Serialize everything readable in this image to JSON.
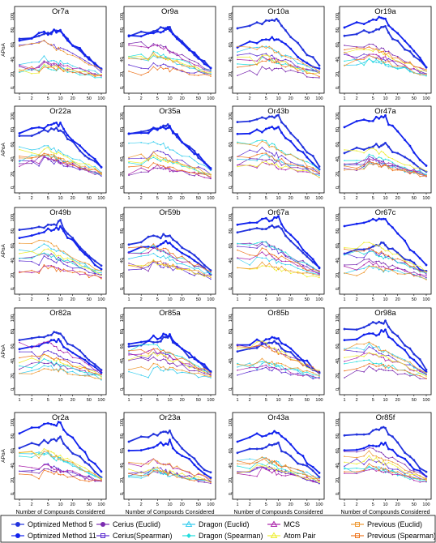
{
  "chart_data": [
    {
      "title": "Or7a",
      "type": "line"
    },
    {
      "title": "Or9a",
      "type": "line"
    },
    {
      "title": "Or10a",
      "type": "line"
    },
    {
      "title": "Or19a",
      "type": "line"
    },
    {
      "title": "Or22a",
      "type": "line"
    },
    {
      "title": "Or35a",
      "type": "line"
    },
    {
      "title": "Or43b",
      "type": "line"
    },
    {
      "title": "Or47a",
      "type": "line"
    },
    {
      "title": "Or49b",
      "type": "line"
    },
    {
      "title": "Or59b",
      "type": "line"
    },
    {
      "title": "Or67a",
      "type": "line"
    },
    {
      "title": "Or67c",
      "type": "line"
    },
    {
      "title": "Or82a",
      "type": "line"
    },
    {
      "title": "Or85a",
      "type": "line"
    },
    {
      "title": "Or85b",
      "type": "line"
    },
    {
      "title": "Or98a",
      "type": "line"
    },
    {
      "title": "Or2a",
      "type": "line"
    },
    {
      "title": "Or23a",
      "type": "line"
    },
    {
      "title": "Or43a",
      "type": "line"
    },
    {
      "title": "Or85f",
      "type": "line"
    }
  ],
  "shared": {
    "ylabel": "APoA",
    "xlabel": "Number of Compounds Considered",
    "x_ticks": [
      "1",
      "2",
      "5",
      "10",
      "20",
      "50",
      "100"
    ],
    "y_ticks": [
      "0",
      "20",
      "40",
      "60",
      "80",
      "100"
    ],
    "ylim": [
      0,
      100
    ],
    "x_scale": "log",
    "x_range": [
      1,
      100
    ]
  },
  "series_styles": [
    {
      "name": "Optimized Method 5",
      "color": "#2233dd"
    },
    {
      "name": "Optimized Method 11",
      "color": "#1122ee"
    },
    {
      "name": "Cerius (Euclid)",
      "color": "#7a2ab0"
    },
    {
      "name": "Cerius(Spearman)",
      "color": "#5a2ad0"
    },
    {
      "name": "Dragon (Euclid)",
      "color": "#33ccee"
    },
    {
      "name": "Dragon (Spearman)",
      "color": "#22dddd"
    },
    {
      "name": "MCS",
      "color": "#aa22aa"
    },
    {
      "name": "Atom Pair",
      "color": "#eeee33"
    },
    {
      "name": "Previous (Euclid)",
      "color": "#ee9933"
    },
    {
      "name": "Previous (Spearman)",
      "color": "#ee7722"
    }
  ],
  "legend": [
    {
      "label": "Optimized Method 5",
      "color": "#2233dd",
      "marker": "circle"
    },
    {
      "label": "Cerius (Euclid)",
      "color": "#7a2ab0",
      "marker": "circle"
    },
    {
      "label": "Dragon (Euclid)",
      "color": "#33ccee",
      "marker": "triangle"
    },
    {
      "label": "MCS",
      "color": "#aa22aa",
      "marker": "triangle"
    },
    {
      "label": "Previous (Euclid)",
      "color": "#ee9933",
      "marker": "square"
    },
    {
      "label": "Optimized Method 11",
      "color": "#1122ee",
      "marker": "circle"
    },
    {
      "label": "Cerius(Spearman)",
      "color": "#5a2ad0",
      "marker": "square"
    },
    {
      "label": "Dragon (Spearman)",
      "color": "#22dddd",
      "marker": "diamond"
    },
    {
      "label": "Atom Pair",
      "color": "#eeee33",
      "marker": "triangle"
    },
    {
      "label": "Previous (Spearman)",
      "color": "#ee7722",
      "marker": "square"
    }
  ]
}
